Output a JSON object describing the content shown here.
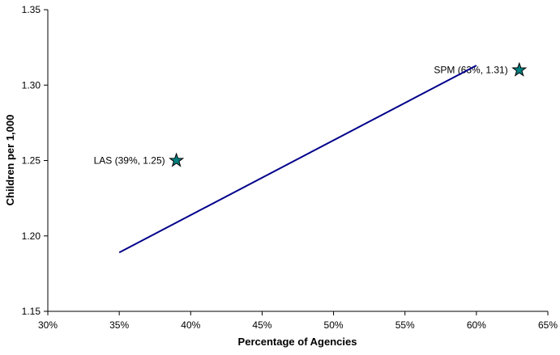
{
  "chart_data": {
    "type": "scatter",
    "title": "",
    "xlabel": "Percentage of Agencies",
    "ylabel": "Children per 1,000",
    "xlim": [
      30,
      65
    ],
    "ylim": [
      1.15,
      1.35
    ],
    "x_tick_values": [
      30,
      35,
      40,
      45,
      50,
      55,
      60,
      65
    ],
    "x_tick_labels": [
      "30%",
      "35%",
      "40%",
      "45%",
      "50%",
      "55%",
      "60%",
      "65%"
    ],
    "y_tick_values": [
      1.15,
      1.2,
      1.25,
      1.3,
      1.35
    ],
    "y_tick_labels": [
      "1.15",
      "1.20",
      "1.25",
      "1.30",
      "1.35"
    ],
    "grid": false,
    "legend": "none",
    "colors": {
      "axis": "#000000",
      "trend_line": "#00008B",
      "marker_fill": "#008080",
      "marker_stroke": "#000000"
    },
    "series": [
      {
        "name": "agency-points",
        "kind": "scatter",
        "marker": "star",
        "points": [
          {
            "x": 39,
            "y": 1.25,
            "label": "LAS (39%, 1.25)"
          },
          {
            "x": 63,
            "y": 1.31,
            "label": "SPM (63%, 1.31)"
          }
        ]
      },
      {
        "name": "trend-line",
        "kind": "line",
        "points": [
          {
            "x": 35,
            "y": 1.189
          },
          {
            "x": 60,
            "y": 1.313
          }
        ]
      }
    ]
  }
}
